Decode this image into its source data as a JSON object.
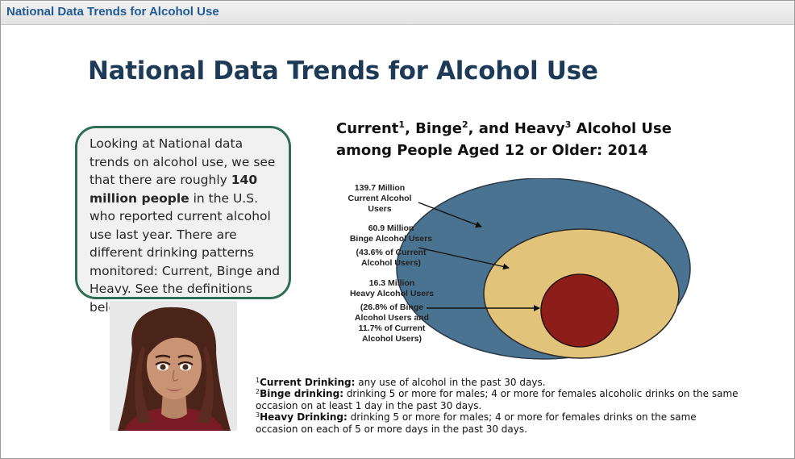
{
  "window": {
    "title": "National Data Trends for Alcohol Use"
  },
  "slide": {
    "title": "National Data Trends for Alcohol Use"
  },
  "bubble": {
    "text_before": "Looking at National data trends on alcohol use, we see that there are roughly ",
    "bold": "140 million people",
    "text_after": " in the U.S. who reported current alcohol use last year. There are different drinking patterns monitored: Current, Binge and Heavy. See the definitions below."
  },
  "chart": {
    "title_current": "Current",
    "sup1": "1",
    "title_binge": ", Binge",
    "sup2": "2",
    "title_heavy": ", and Heavy",
    "sup3": "3",
    "title_rest": " Alcohol Use among People Aged 12 or Older: 2014"
  },
  "chart_data": {
    "type": "nested-circles",
    "title": "Current, Binge, and Heavy Alcohol Use among People Aged 12 or Older: 2014",
    "series": [
      {
        "name": "Current Alcohol Users",
        "value_millions": 139.7,
        "value_label": "139.7 Million",
        "label": "Current Alcohol Users",
        "color": "#4a7391"
      },
      {
        "name": "Binge Alcohol Users",
        "value_millions": 60.9,
        "value_label": "60.9 Million",
        "label": "Binge Alcohol Users",
        "note": "(43.6% of Current Alcohol Users)",
        "color": "#e2c37a"
      },
      {
        "name": "Heavy Alcohol Users",
        "value_millions": 16.3,
        "value_label": "16.3 Million",
        "label": "Heavy Alcohol Users",
        "note": "(26.8% of Binge Alcohol Users and 11.7% of Current Alcohol Users)",
        "color": "#8c1d18"
      }
    ]
  },
  "labels": {
    "current_value": "139.7 Million",
    "current_name": "Current Alcohol Users",
    "binge_value": "60.9 Million",
    "binge_name": "Binge Alcohol Users",
    "binge_note1": "(43.6% of Current",
    "binge_note2": "Alcohol Users)",
    "heavy_value": "16.3 Million",
    "heavy_name": "Heavy Alcohol Users",
    "heavy_note1": "(26.8% of Binge",
    "heavy_note2": "Alcohol Users and",
    "heavy_note3": "11.7% of Current",
    "heavy_note4": "Alcohol Users)"
  },
  "footnotes": {
    "n1_sup": "1",
    "n1_term": "Current Drinking:",
    "n1_text": " any use of alcohol in the past 30 days.",
    "n2_sup": "2",
    "n2_term": "Binge drinking:",
    "n2_text": " drinking 5 or more for males; 4 or more for females alcoholic drinks on the same occasion on at least 1 day in the past 30 days.",
    "n3_sup": "3",
    "n3_term": "Heavy Drinking:",
    "n3_text": " drinking 5 or more for males; 4 or more for females drinks on the same occasion on each of 5 or more days in the past 30 days."
  },
  "colors": {
    "title_bar_text": "#1f5a94",
    "slide_title": "#1d3a57",
    "bubble_border": "#2e6e54",
    "outer_circle": "#4a7391",
    "middle_circle": "#e2c37a",
    "inner_circle": "#8c1d18"
  }
}
